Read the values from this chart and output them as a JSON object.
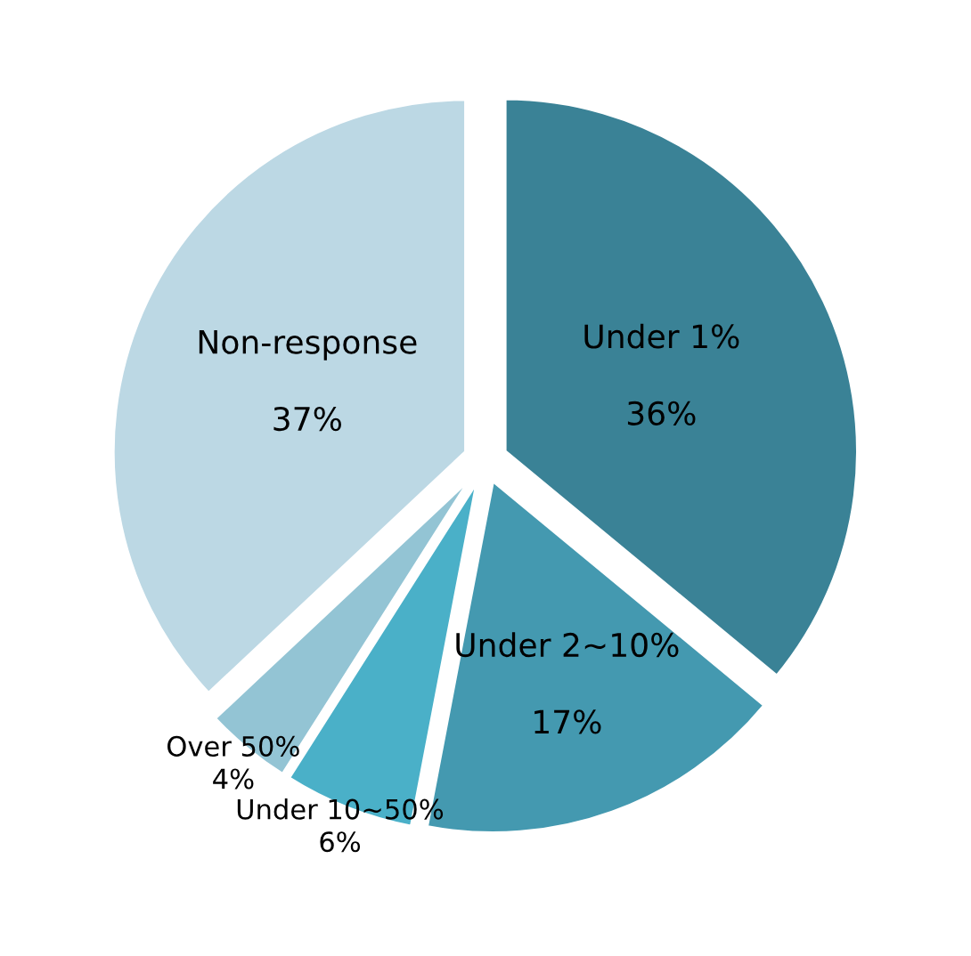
{
  "chart_data": {
    "type": "pie",
    "categories": [
      "Under 1%",
      "Under 2~10%",
      "Under 10~50%",
      "Over 50%",
      "Non-response"
    ],
    "values": [
      36,
      17,
      6,
      4,
      37
    ],
    "value_labels": [
      "36%",
      "17%",
      "6%",
      "4%",
      "37%"
    ],
    "colors": [
      "#3a8296",
      "#4499b0",
      "#4ab0c8",
      "#93c4d4",
      "#bcd8e4"
    ]
  }
}
